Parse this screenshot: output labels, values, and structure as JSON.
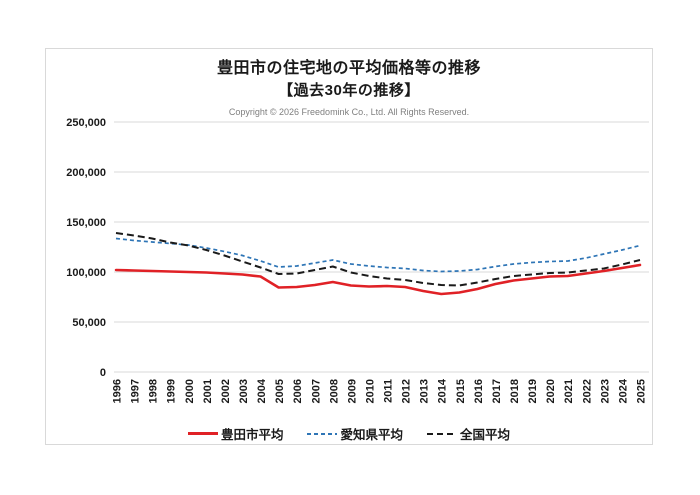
{
  "header": {
    "title": "豊田市の住宅地の平均価格等の推移",
    "subtitle": "【過去30年の推移】",
    "copyright": "Copyright © 2026 Freedomink Co., Ltd. All Rights Reserved."
  },
  "chart_data": {
    "type": "line",
    "title": "豊田市の住宅地の平均価格等の推移",
    "subtitle": "【過去30年の推移】",
    "x": [
      "1996",
      "1997",
      "1998",
      "1999",
      "2000",
      "2001",
      "2002",
      "2003",
      "2004",
      "2005",
      "2006",
      "2007",
      "2008",
      "2009",
      "2010",
      "2011",
      "2012",
      "2013",
      "2014",
      "2015",
      "2016",
      "2017",
      "2018",
      "2019",
      "2020",
      "2021",
      "2022",
      "2023",
      "2024",
      "2025"
    ],
    "series": [
      {
        "key": "toyota-city-average",
        "name": "豊田市平均",
        "color": "#e02126",
        "line_style": "solid",
        "values": [
          102000,
          101500,
          101000,
          100500,
          100000,
          99500,
          98500,
          97500,
          95500,
          84500,
          85000,
          87000,
          90000,
          86500,
          85500,
          86000,
          85000,
          81000,
          78000,
          79500,
          83000,
          88000,
          91500,
          93500,
          95500,
          96000,
          98500,
          101000,
          104000,
          107000
        ]
      },
      {
        "key": "aichi-prefecture-average",
        "name": "愛知県平均",
        "color": "#2e75b6",
        "line_style": "dashed-short",
        "values": [
          133500,
          131500,
          130000,
          128500,
          127000,
          124000,
          120500,
          116500,
          111000,
          105000,
          106000,
          109000,
          112000,
          108000,
          106000,
          104500,
          103500,
          101500,
          100500,
          101000,
          102500,
          105500,
          108000,
          109500,
          110500,
          111000,
          114000,
          118000,
          122000,
          126500
        ]
      },
      {
        "key": "national-average",
        "name": "全国平均",
        "color": "#1a1a1a",
        "line_style": "dashed-long",
        "values": [
          139000,
          136500,
          133500,
          129500,
          126500,
          122000,
          116500,
          110500,
          104500,
          98000,
          98500,
          102000,
          105500,
          99500,
          96000,
          93500,
          92000,
          89000,
          87000,
          86500,
          89500,
          93000,
          96000,
          97500,
          99000,
          99500,
          101500,
          103500,
          107500,
          112000
        ]
      }
    ],
    "ylim": [
      0,
      250000
    ],
    "y_ticks": [
      {
        "value": 0,
        "label": "0"
      },
      {
        "value": 50000,
        "label": "50,000"
      },
      {
        "value": 100000,
        "label": "100,000"
      },
      {
        "value": 150000,
        "label": "150,000"
      },
      {
        "value": 200000,
        "label": "200,000"
      },
      {
        "value": 250000,
        "label": "250,000"
      }
    ],
    "grid": "horizontal",
    "legend_position": "bottom",
    "grid_color": "#d9d9d9"
  }
}
